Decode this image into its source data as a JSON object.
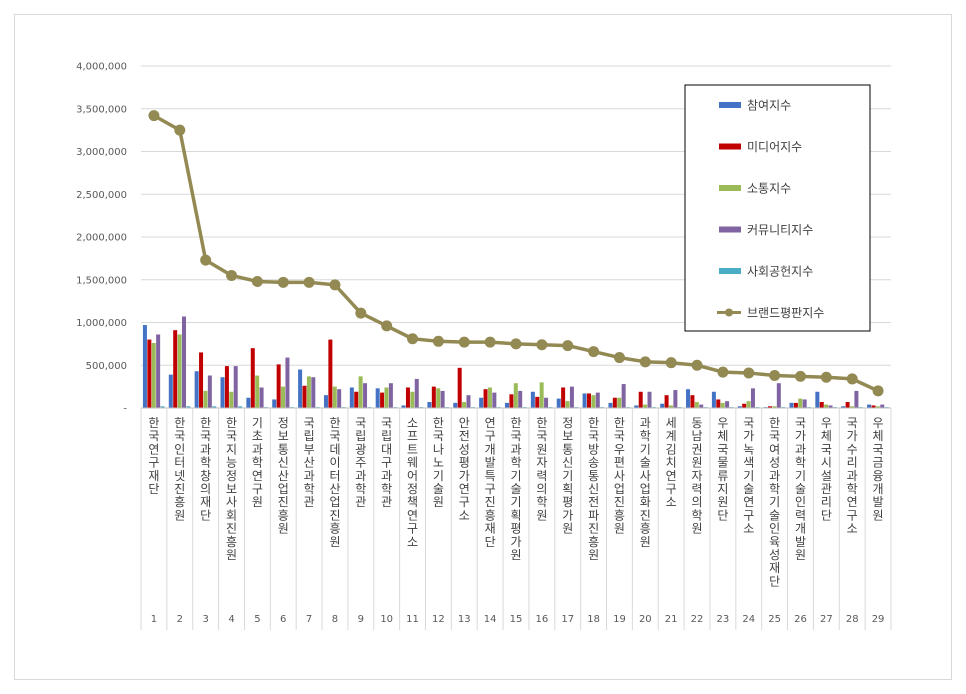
{
  "chart_data": {
    "type": "bar",
    "categories": [
      "1",
      "2",
      "3",
      "4",
      "5",
      "6",
      "7",
      "8",
      "9",
      "10",
      "11",
      "12",
      "13",
      "14",
      "15",
      "16",
      "17",
      "18",
      "19",
      "20",
      "21",
      "22",
      "23",
      "24",
      "25",
      "26",
      "27",
      "28",
      "29"
    ],
    "category_names": [
      "한국연구재단",
      "한국인터넷진흥원",
      "한국과학창의재단",
      "한국지능정보사회진흥원",
      "기초과학연구원",
      "정보통신산업진흥원",
      "국립부산과학관",
      "한국데이터산업진흥원",
      "국립광주과학관",
      "국립대구과학관",
      "소프트웨어정책연구소",
      "한국나노기술원",
      "안전성평가연구소",
      "연구개발특구진흥재단",
      "한국과학기술기획평가원",
      "한국원자력의학원",
      "정보통신기획평가원",
      "한국방송통신전파진흥원",
      "한국우편사업진흥원",
      "과학기술사업화진흥원",
      "세계김치연구소",
      "동남권원자력의학원",
      "우체국물류지원단",
      "국가녹색기술연구소",
      "한국여성과학기술인육성재단",
      "국가과학기술인력개발원",
      "우체국시설관리단",
      "국가수리과학연구소",
      "우체국금융개발원"
    ],
    "series": [
      {
        "name": "참여지수",
        "color": "#4472c4",
        "values": [
          970000,
          390000,
          430000,
          360000,
          120000,
          100000,
          450000,
          150000,
          240000,
          230000,
          30000,
          70000,
          60000,
          120000,
          60000,
          190000,
          110000,
          170000,
          60000,
          30000,
          50000,
          220000,
          190000,
          20000,
          10000,
          60000,
          190000,
          20000,
          40000
        ]
      },
      {
        "name": "미디어지수",
        "color": "#c00000",
        "values": [
          800000,
          910000,
          650000,
          490000,
          700000,
          510000,
          260000,
          800000,
          190000,
          180000,
          240000,
          250000,
          470000,
          220000,
          160000,
          130000,
          240000,
          170000,
          120000,
          190000,
          150000,
          150000,
          100000,
          50000,
          20000,
          60000,
          70000,
          70000,
          30000
        ]
      },
      {
        "name": "소통지수",
        "color": "#9bbb59",
        "values": [
          760000,
          860000,
          200000,
          190000,
          380000,
          250000,
          370000,
          250000,
          370000,
          240000,
          190000,
          230000,
          70000,
          240000,
          290000,
          300000,
          80000,
          150000,
          120000,
          40000,
          30000,
          70000,
          60000,
          80000,
          20000,
          110000,
          40000,
          20000,
          20000
        ]
      },
      {
        "name": "커뮤니티지수",
        "color": "#8064a2",
        "values": [
          860000,
          1070000,
          380000,
          490000,
          240000,
          590000,
          360000,
          220000,
          290000,
          290000,
          340000,
          200000,
          150000,
          180000,
          200000,
          120000,
          250000,
          180000,
          280000,
          190000,
          210000,
          40000,
          80000,
          230000,
          290000,
          100000,
          30000,
          200000,
          40000
        ]
      },
      {
        "name": "사회공헌지수",
        "color": "#4bacc6",
        "values": [
          20000,
          20000,
          20000,
          20000,
          10000,
          10000,
          10000,
          10000,
          10000,
          10000,
          10000,
          10000,
          10000,
          10000,
          10000,
          10000,
          10000,
          10000,
          10000,
          10000,
          10000,
          10000,
          10000,
          10000,
          10000,
          10000,
          10000,
          10000,
          10000
        ]
      }
    ],
    "line_series": {
      "name": "브랜드평판지수",
      "color": "#938953",
      "values": [
        3420000,
        3250000,
        1730000,
        1550000,
        1480000,
        1470000,
        1470000,
        1440000,
        1110000,
        960000,
        810000,
        780000,
        770000,
        770000,
        750000,
        740000,
        730000,
        660000,
        590000,
        540000,
        530000,
        500000,
        420000,
        410000,
        380000,
        370000,
        360000,
        340000,
        200000
      ]
    },
    "ylim": [
      0,
      4000000
    ],
    "yticks": [
      "-",
      "500,000",
      "1,000,000",
      "1,500,000",
      "2,000,000",
      "2,500,000",
      "3,000,000",
      "3,500,000",
      "4,000,000"
    ],
    "grid": true,
    "legend_position": "top-right"
  }
}
